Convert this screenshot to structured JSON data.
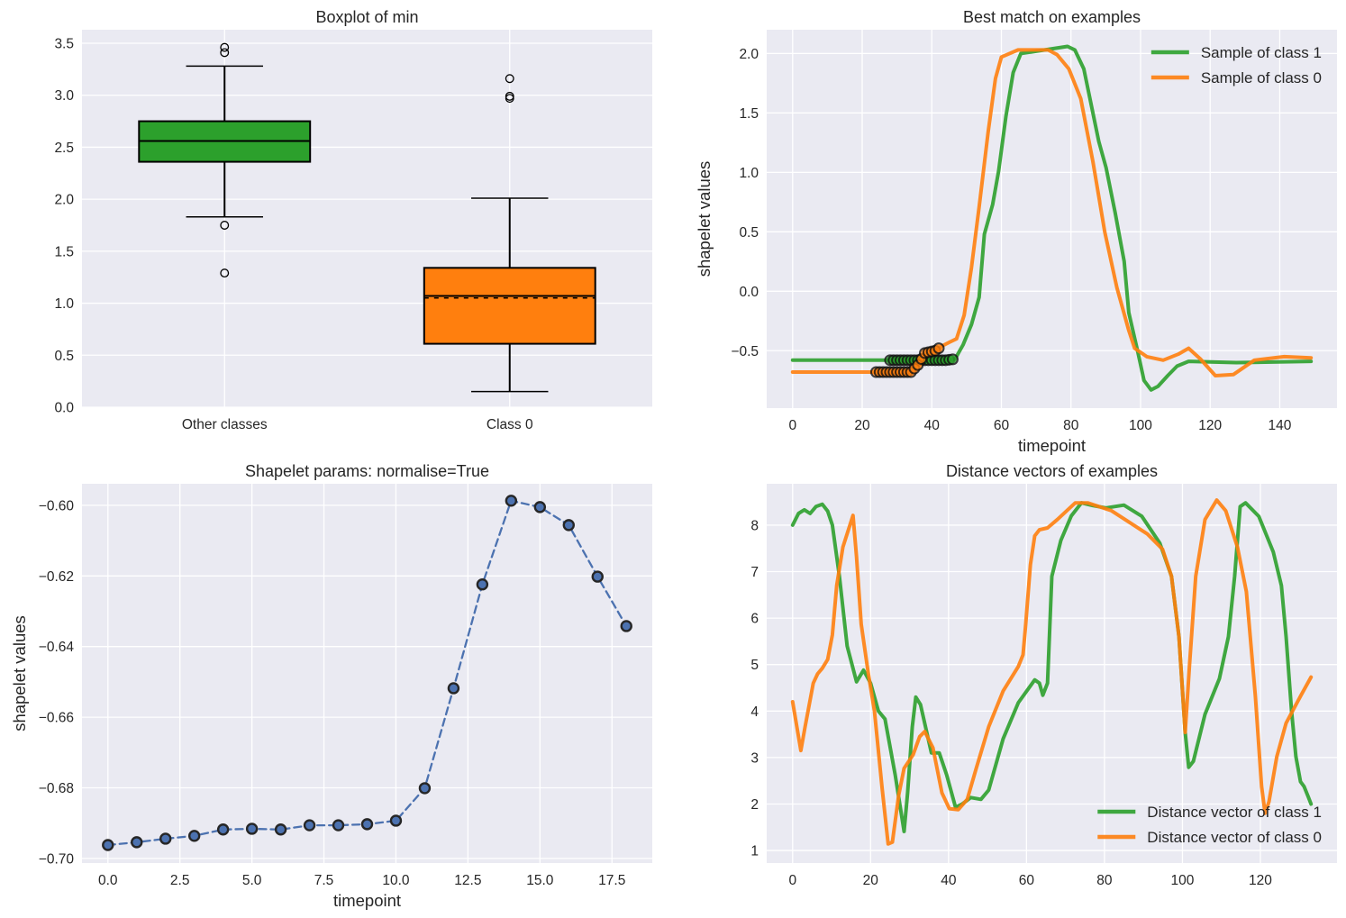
{
  "chart_data": [
    {
      "type": "box",
      "title": "Boxplot of min",
      "xlabel": "",
      "ylabel": "",
      "xlim": [
        0.5,
        2.5
      ],
      "ylim": [
        0,
        3.63
      ],
      "grid": true,
      "xticks": [
        {
          "value": 1,
          "label": "Other classes"
        },
        {
          "value": 2,
          "label": "Class 0"
        }
      ],
      "yticks": [
        {
          "value": 0,
          "label": "0.0"
        },
        {
          "value": 0.5,
          "label": "0.5"
        },
        {
          "value": 1,
          "label": "1.0"
        },
        {
          "value": 1.5,
          "label": "1.5"
        },
        {
          "value": 2,
          "label": "2.0"
        },
        {
          "value": 2.5,
          "label": "2.5"
        },
        {
          "value": 3,
          "label": "3.0"
        },
        {
          "value": 3.5,
          "label": "3.5"
        }
      ],
      "boxes": [
        {
          "category": "Other classes",
          "color": "#2ca02c",
          "q1": 2.36,
          "median": 2.56,
          "mean": 2.56,
          "q3": 2.75,
          "whislo": 1.83,
          "whishi": 3.28,
          "fliers": [
            1.75,
            1.29,
            3.41,
            3.46
          ]
        },
        {
          "category": "Class 0",
          "color": "#ff7f0e",
          "q1": 0.61,
          "median": 1.07,
          "mean": 1.05,
          "q3": 1.34,
          "whislo": 0.15,
          "whishi": 2.01,
          "fliers": [
            2.97,
            2.99,
            3.16
          ]
        }
      ]
    },
    {
      "type": "line",
      "title": "Best match on examples",
      "xlabel": "timepoint",
      "ylabel": "shapelet values",
      "xlim": [
        -7.45,
        156.45
      ],
      "ylim": [
        -0.983,
        2.2
      ],
      "grid": true,
      "legend": "upper right",
      "xticks": [
        {
          "value": 0,
          "label": "0"
        },
        {
          "value": 20,
          "label": "20"
        },
        {
          "value": 40,
          "label": "40"
        },
        {
          "value": 60,
          "label": "60"
        },
        {
          "value": 80,
          "label": "80"
        },
        {
          "value": 100,
          "label": "100"
        },
        {
          "value": 120,
          "label": "120"
        },
        {
          "value": 140,
          "label": "140"
        }
      ],
      "yticks": [
        {
          "value": -0.5,
          "label": "−0.5"
        },
        {
          "value": 0,
          "label": "0.0"
        },
        {
          "value": 0.5,
          "label": "0.5"
        },
        {
          "value": 1,
          "label": "1.0"
        },
        {
          "value": 1.5,
          "label": "1.5"
        },
        {
          "value": 2,
          "label": "2.0"
        }
      ],
      "series": [
        {
          "name": "Sample of class 1",
          "color": "#2ca02c",
          "match_start": 28,
          "match_length": 19,
          "x": [
            0,
            44,
            46.7,
            49,
            51.4,
            53.6,
            55.1,
            57.5,
            59.2,
            61.3,
            63.4,
            65.6,
            72.5,
            79,
            81.1,
            83.7,
            88,
            90.1,
            92.7,
            95.3,
            96.6,
            99.2,
            101,
            103,
            105,
            107.8,
            110.5,
            113.8,
            127.5,
            149
          ],
          "y": [
            -0.58,
            -0.58,
            -0.57,
            -0.45,
            -0.28,
            -0.05,
            0.48,
            0.73,
            1.01,
            1.47,
            1.84,
            2.0,
            2.03,
            2.06,
            2.03,
            1.87,
            1.26,
            1.04,
            0.66,
            0.25,
            -0.18,
            -0.51,
            -0.75,
            -0.83,
            -0.8,
            -0.71,
            -0.63,
            -0.59,
            -0.6,
            -0.59
          ]
        },
        {
          "name": "Sample of class 0",
          "color": "#ff7f0e",
          "match_start": 24,
          "match_length": 19,
          "x": [
            0,
            34,
            36,
            38,
            41,
            43,
            45,
            47.1,
            49.3,
            51.4,
            53.6,
            56.2,
            58.3,
            60,
            64.8,
            73.4,
            76,
            79.4,
            82.8,
            86.3,
            89.7,
            93.2,
            96.6,
            98.3,
            101.8,
            106.5,
            110.8,
            113.8,
            117.2,
            121.5,
            126.7,
            132.7,
            141.3,
            149
          ],
          "y": [
            -0.68,
            -0.68,
            -0.62,
            -0.52,
            -0.5,
            -0.46,
            -0.43,
            -0.4,
            -0.2,
            0.2,
            0.71,
            1.34,
            1.79,
            1.97,
            2.03,
            2.03,
            1.99,
            1.87,
            1.62,
            1.09,
            0.5,
            0.03,
            -0.33,
            -0.48,
            -0.55,
            -0.58,
            -0.53,
            -0.48,
            -0.57,
            -0.71,
            -0.7,
            -0.58,
            -0.55,
            -0.56
          ]
        }
      ]
    },
    {
      "type": "line",
      "title": "Shapelet params: normalise=True",
      "xlabel": "timepoint",
      "ylabel": "shapelet values",
      "xlim": [
        -0.9,
        18.9
      ],
      "ylim": [
        -0.7013,
        -0.5939
      ],
      "grid": true,
      "xticks": [
        {
          "value": 0,
          "label": "0.0"
        },
        {
          "value": 2.5,
          "label": "2.5"
        },
        {
          "value": 5,
          "label": "5.0"
        },
        {
          "value": 7.5,
          "label": "7.5"
        },
        {
          "value": 10,
          "label": "10.0"
        },
        {
          "value": 12.5,
          "label": "12.5"
        },
        {
          "value": 15,
          "label": "15.0"
        },
        {
          "value": 17.5,
          "label": "17.5"
        }
      ],
      "yticks": [
        {
          "value": -0.7,
          "label": "−0.70"
        },
        {
          "value": -0.68,
          "label": "−0.68"
        },
        {
          "value": -0.66,
          "label": "−0.66"
        },
        {
          "value": -0.64,
          "label": "−0.64"
        },
        {
          "value": -0.62,
          "label": "−0.62"
        },
        {
          "value": -0.6,
          "label": "−0.60"
        }
      ],
      "series": [
        {
          "color": "#4c72b0",
          "linestyle": "dashed",
          "marker": "o",
          "x": [
            0,
            1,
            2,
            3,
            4,
            5,
            6,
            7,
            8,
            9,
            10,
            11,
            12,
            13,
            14,
            15,
            16,
            17,
            18
          ],
          "y": [
            -0.6962,
            -0.6954,
            -0.6944,
            -0.6936,
            -0.6918,
            -0.6916,
            -0.6918,
            -0.6906,
            -0.6906,
            -0.6903,
            -0.6893,
            -0.6801,
            -0.6518,
            -0.6224,
            -0.5987,
            -0.6005,
            -0.6056,
            -0.6202,
            -0.6342
          ]
        }
      ]
    },
    {
      "type": "line",
      "title": "Distance vectors of examples",
      "xlabel": "",
      "ylabel": "",
      "xlim": [
        -6.65,
        139.65
      ],
      "ylim": [
        0.73,
        8.89
      ],
      "grid": true,
      "legend": "lower right",
      "xticks": [
        {
          "value": 0,
          "label": "0"
        },
        {
          "value": 20,
          "label": "20"
        },
        {
          "value": 40,
          "label": "40"
        },
        {
          "value": 60,
          "label": "60"
        },
        {
          "value": 80,
          "label": "80"
        },
        {
          "value": 100,
          "label": "100"
        },
        {
          "value": 120,
          "label": "120"
        }
      ],
      "yticks": [
        {
          "value": 1,
          "label": "1"
        },
        {
          "value": 2,
          "label": "2"
        },
        {
          "value": 3,
          "label": "3"
        },
        {
          "value": 4,
          "label": "4"
        },
        {
          "value": 5,
          "label": "5"
        },
        {
          "value": 6,
          "label": "6"
        },
        {
          "value": 7,
          "label": "7"
        },
        {
          "value": 8,
          "label": "8"
        }
      ],
      "series": [
        {
          "name": "Distance vector of class 1",
          "color": "#2ca02c",
          "x": [
            0,
            1.5,
            3,
            4.5,
            6,
            7.6,
            9,
            10.2,
            12,
            14,
            16.4,
            18.2,
            20,
            22,
            23.7,
            26.3,
            28.6,
            29.5,
            30.7,
            31.6,
            32.8,
            35.6,
            37.6,
            39.5,
            41.8,
            43.5,
            45.7,
            48.3,
            50.3,
            54,
            57.9,
            62.1,
            63.3,
            64.2,
            65.4,
            66.5,
            68.8,
            71.5,
            74.1,
            77,
            80.4,
            85,
            89.6,
            94.2,
            97.2,
            99.1,
            100.7,
            101.6,
            102.8,
            105.8,
            109.5,
            111.8,
            113.4,
            114.8,
            116.2,
            119.6,
            123.3,
            125.4,
            126.6,
            128,
            129.1,
            130.3,
            131.2,
            132.3,
            133
          ],
          "y": [
            8.0,
            8.25,
            8.33,
            8.25,
            8.4,
            8.45,
            8.3,
            8.0,
            6.9,
            5.4,
            4.63,
            4.88,
            4.6,
            4.0,
            3.83,
            2.63,
            1.41,
            2.24,
            3.66,
            4.3,
            4.14,
            3.1,
            3.1,
            2.63,
            1.93,
            2.0,
            2.14,
            2.1,
            2.3,
            3.4,
            4.18,
            4.67,
            4.6,
            4.34,
            4.6,
            6.9,
            7.67,
            8.2,
            8.48,
            8.42,
            8.37,
            8.43,
            8.19,
            7.61,
            6.9,
            5.6,
            3.54,
            2.79,
            2.92,
            3.93,
            4.7,
            5.6,
            6.9,
            8.4,
            8.48,
            8.19,
            7.42,
            6.7,
            5.6,
            3.99,
            3.02,
            2.48,
            2.38,
            2.15,
            2.0
          ]
        },
        {
          "name": "Distance vector of class 0",
          "color": "#ff7f0e",
          "x": [
            0,
            2.1,
            3.2,
            5.3,
            6.4,
            7.6,
            9,
            10.2,
            11.3,
            12.9,
            15.5,
            16.4,
            17.6,
            19.4,
            21,
            22.9,
            24.5,
            25.6,
            27.2,
            28.6,
            30.9,
            32.6,
            33.9,
            36,
            38.3,
            40.2,
            42.5,
            44.8,
            47.1,
            50.3,
            54,
            57.9,
            59.1,
            59.8,
            61,
            62.1,
            63.3,
            65.4,
            67.9,
            72.5,
            75.7,
            81.8,
            86.4,
            91,
            94.9,
            97.2,
            99.1,
            100.7,
            101.8,
            103.4,
            105.8,
            108.8,
            111.1,
            114.1,
            116.4,
            118.7,
            120.3,
            121.2,
            122.2,
            124.2,
            126.6,
            130.3,
            133
          ],
          "y": [
            4.2,
            3.15,
            3.66,
            4.6,
            4.8,
            4.92,
            5.11,
            5.64,
            6.7,
            7.53,
            8.21,
            7.32,
            5.87,
            4.82,
            4.0,
            2.38,
            1.14,
            1.18,
            2.19,
            2.77,
            3.06,
            3.45,
            3.56,
            3.21,
            2.24,
            1.9,
            1.88,
            2.1,
            2.77,
            3.66,
            4.43,
            4.96,
            5.21,
            5.87,
            7.15,
            7.77,
            7.9,
            7.94,
            8.12,
            8.48,
            8.48,
            8.31,
            8.06,
            7.81,
            7.48,
            6.9,
            5.6,
            3.54,
            4.96,
            6.9,
            8.12,
            8.54,
            8.31,
            7.53,
            6.57,
            4.32,
            2.38,
            1.8,
            2.05,
            3.02,
            3.74,
            4.32,
            4.73
          ]
        }
      ]
    }
  ]
}
